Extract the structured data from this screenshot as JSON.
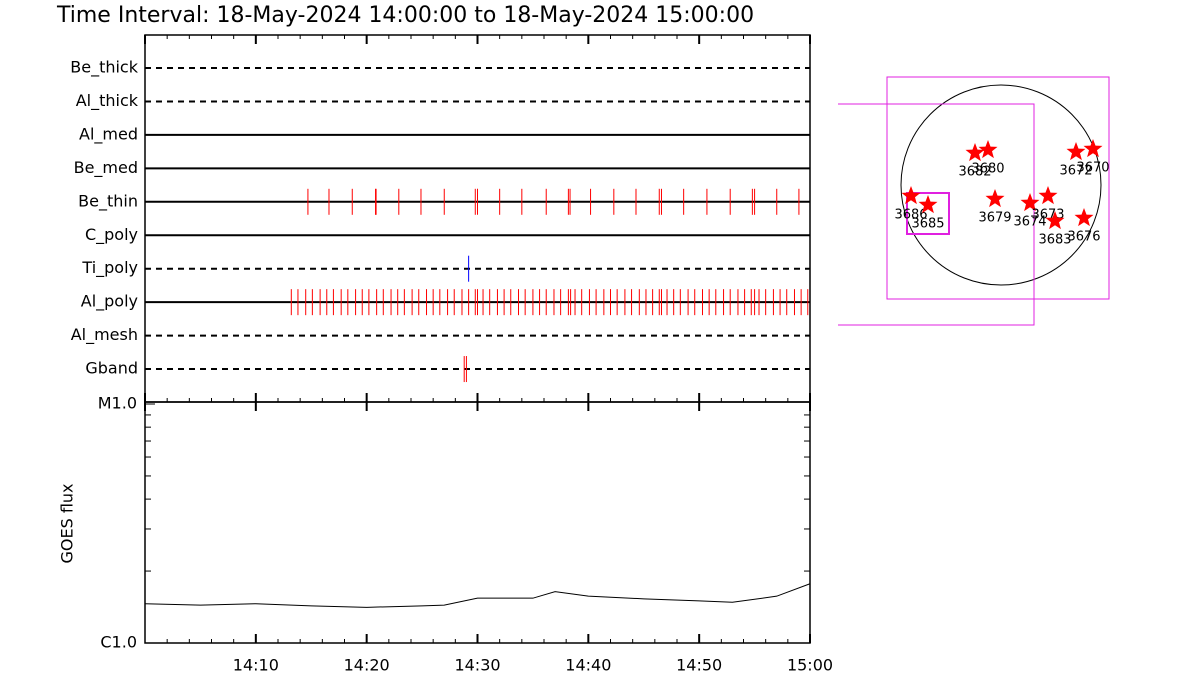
{
  "chart_data": [
    {
      "type": "event",
      "title": "Time Interval: 18-May-2024 14:00:00 to 18-May-2024 15:00:00",
      "categories": [
        "Be_thick",
        "Al_thick",
        "Al_med",
        "Be_med",
        "Be_thin",
        "C_poly",
        "Ti_poly",
        "Al_poly",
        "Al_mesh",
        "Gband"
      ],
      "line_styles": [
        "dashed",
        "dashed",
        "solid",
        "solid",
        "solid",
        "solid",
        "dashed",
        "solid",
        "dashed",
        "dashed"
      ],
      "event_colors": [
        "#ff0000",
        "#ff0000",
        "#ff0000",
        "#ff0000",
        "#ff0000",
        "#ff0000",
        "#0000ff",
        "#ff0000",
        "#ff0000",
        "#ff0000"
      ],
      "events": [
        [],
        [],
        [],
        [],
        [
          14.7,
          16.6,
          18.7,
          20.8,
          20.85,
          22.9,
          24.9,
          27.0,
          29.8,
          30.0,
          32.0,
          34.0,
          36.2,
          38.2,
          38.35,
          40.2,
          42.3,
          44.3,
          46.4,
          46.6,
          48.6,
          50.7,
          52.8,
          54.8,
          55.0,
          57.0,
          59.0
        ],
        [],
        [
          29.2
        ],
        [
          13.2,
          13.8,
          14.5,
          15.1,
          15.8,
          16.4,
          17.0,
          17.7,
          18.3,
          19.0,
          19.6,
          20.2,
          20.9,
          21.5,
          22.2,
          22.8,
          23.4,
          24.1,
          24.7,
          25.4,
          26.0,
          26.6,
          27.3,
          27.9,
          28.6,
          29.2,
          29.8,
          30.0,
          30.5,
          31.1,
          31.8,
          32.4,
          33.0,
          33.7,
          34.3,
          35.0,
          35.6,
          36.2,
          36.9,
          37.5,
          38.2,
          38.4,
          38.8,
          39.4,
          40.1,
          40.7,
          41.4,
          42.0,
          42.6,
          43.3,
          43.9,
          44.6,
          45.2,
          45.8,
          46.4,
          46.6,
          47.1,
          47.7,
          48.3,
          49.0,
          49.6,
          50.3,
          50.9,
          51.5,
          52.2,
          52.8,
          53.5,
          54.1,
          54.7,
          55.0,
          55.4,
          56.0,
          56.7,
          57.3,
          57.9,
          58.6,
          59.2,
          59.8
        ],
        [],
        [
          28.8,
          29.0
        ]
      ],
      "xlim": [
        0,
        60
      ],
      "xticks": [
        0,
        10,
        20,
        30,
        40,
        50,
        60
      ]
    },
    {
      "type": "line",
      "y_label": "GOES flux",
      "x": [
        0,
        5,
        10,
        15,
        20,
        25,
        27,
        30,
        35,
        37,
        40,
        45,
        50,
        53,
        57,
        60
      ],
      "values": [
        1.46e-06,
        1.44e-06,
        1.46e-06,
        1.43e-06,
        1.41e-06,
        1.43e-06,
        1.44e-06,
        1.54e-06,
        1.54e-06,
        1.64e-06,
        1.57e-06,
        1.53e-06,
        1.5e-06,
        1.48e-06,
        1.57e-06,
        1.77e-06
      ],
      "color": "#000000",
      "log_y": true,
      "xlim": [
        0,
        60
      ],
      "xticks": [
        {
          "value": 10,
          "label": "14:10"
        },
        {
          "value": 20,
          "label": "14:20"
        },
        {
          "value": 30,
          "label": "14:30"
        },
        {
          "value": 40,
          "label": "14:40"
        },
        {
          "value": 50,
          "label": "14:50"
        },
        {
          "value": 60,
          "label": "15:00"
        }
      ],
      "ylim": [
        1e-06,
        1e-05
      ],
      "yticks": [
        {
          "value": 1e-06,
          "label": "C1.0"
        },
        {
          "value": 1e-05,
          "label": "M1.0"
        }
      ]
    },
    {
      "type": "scatter",
      "labels": [
        "3682",
        "3680",
        "3672",
        "3670",
        "3686",
        "3685",
        "3679",
        "3674",
        "3673",
        "3683",
        "3676"
      ],
      "x": [
        -0.26,
        -0.13,
        0.75,
        0.92,
        -0.9,
        -0.73,
        -0.06,
        0.29,
        0.47,
        0.54,
        0.83
      ],
      "values": [
        0.32,
        0.35,
        0.33,
        0.36,
        -0.11,
        -0.2,
        -0.14,
        -0.18,
        -0.11,
        -0.36,
        -0.33
      ],
      "color": "#ff0000"
    }
  ]
}
